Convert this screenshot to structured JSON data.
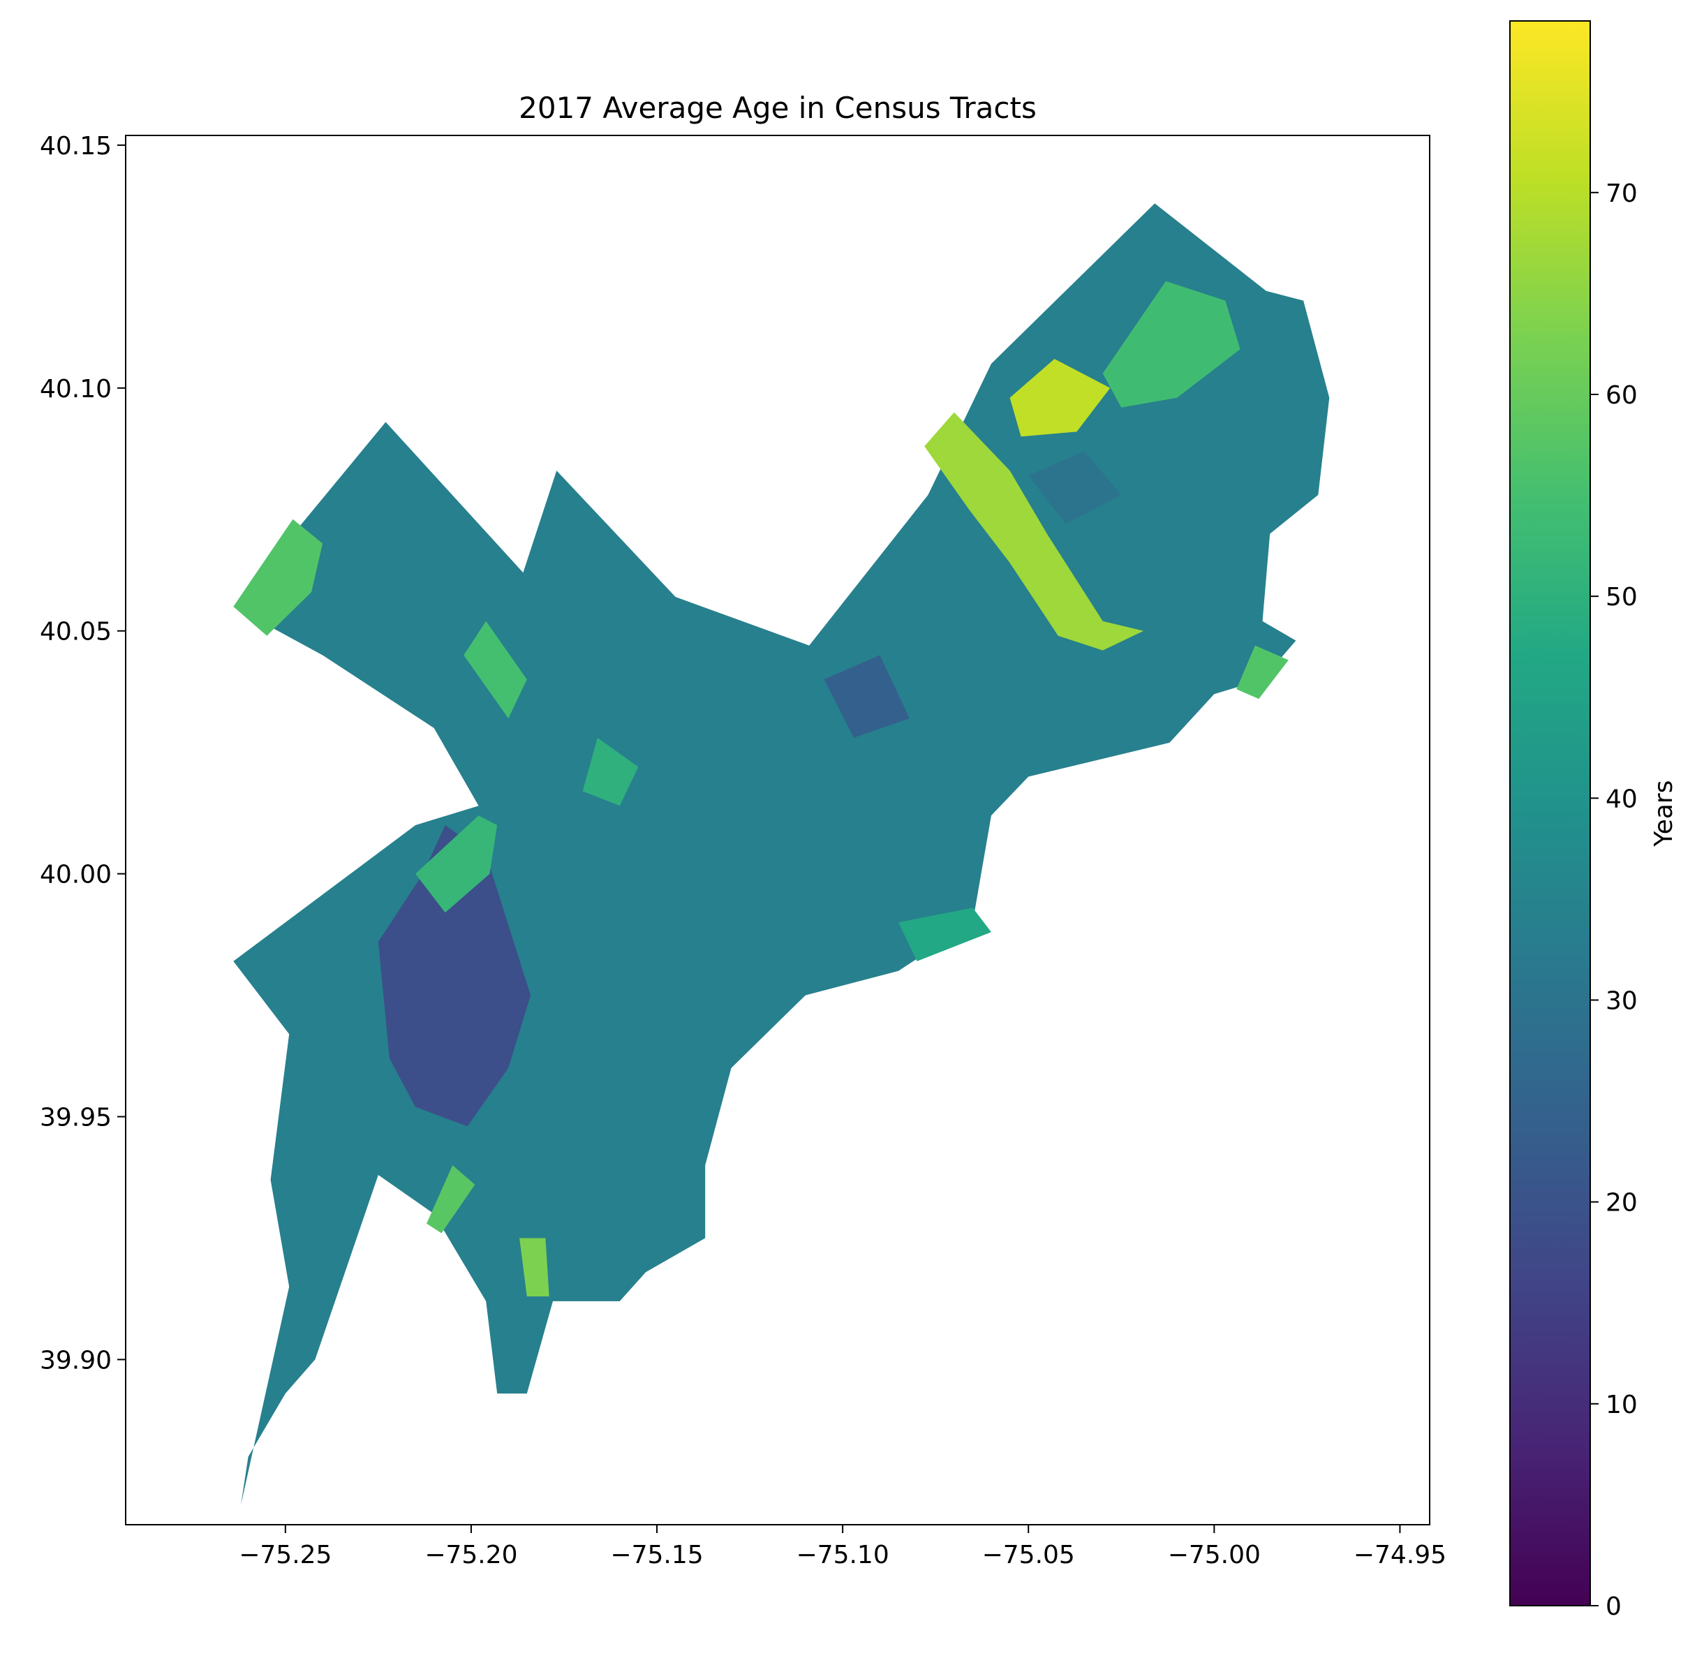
{
  "chart_data": {
    "type": "choropleth",
    "title": "2017 Average Age in Census Tracts",
    "x_ticks": [
      -75.25,
      -75.2,
      -75.15,
      -75.1,
      -75.05,
      -75.0,
      -74.95
    ],
    "x_tick_labels": [
      "−75.25",
      "−75.20",
      "−75.15",
      "−75.10",
      "−75.05",
      "−75.00",
      "−74.95"
    ],
    "y_ticks": [
      39.9,
      39.95,
      40.0,
      40.05,
      40.1,
      40.15
    ],
    "y_tick_labels": [
      "39.90",
      "39.95",
      "40.00",
      "40.05",
      "40.10",
      "40.15"
    ],
    "xlim": [
      -75.293,
      -74.942
    ],
    "ylim": [
      39.866,
      40.152
    ],
    "colormap": "viridis",
    "colorbar": {
      "label": "Years",
      "range": [
        0,
        78.5
      ],
      "ticks": [
        0,
        10,
        20,
        30,
        40,
        50,
        60,
        70
      ],
      "tick_labels": [
        "0",
        "10",
        "20",
        "30",
        "40",
        "50",
        "60",
        "70"
      ]
    },
    "grid": false,
    "regions": [
      {
        "name": "",
        "value": 34,
        "poly": [
          [
            -75.264,
            40.055
          ],
          [
            -75.223,
            40.093
          ],
          [
            -75.186,
            40.062
          ],
          [
            -75.177,
            40.083
          ],
          [
            -75.145,
            40.057
          ],
          [
            -75.109,
            40.047
          ],
          [
            -75.077,
            40.078
          ],
          [
            -75.06,
            40.105
          ],
          [
            -75.016,
            40.138
          ],
          [
            -74.986,
            40.12
          ],
          [
            -74.976,
            40.118
          ],
          [
            -74.969,
            40.098
          ],
          [
            -74.972,
            40.078
          ],
          [
            -74.985,
            40.07
          ],
          [
            -74.987,
            40.052
          ],
          [
            -74.978,
            40.048
          ],
          [
            -74.987,
            40.04
          ],
          [
            -75.0,
            40.037
          ],
          [
            -75.012,
            40.027
          ],
          [
            -75.05,
            40.02
          ],
          [
            -75.06,
            40.012
          ],
          [
            -75.065,
            39.99
          ],
          [
            -75.085,
            39.98
          ],
          [
            -75.11,
            39.975
          ],
          [
            -75.13,
            39.96
          ],
          [
            -75.137,
            39.94
          ],
          [
            -75.137,
            39.925
          ],
          [
            -75.153,
            39.918
          ],
          [
            -75.16,
            39.912
          ],
          [
            -75.178,
            39.912
          ],
          [
            -75.185,
            39.893
          ],
          [
            -75.193,
            39.893
          ],
          [
            -75.196,
            39.912
          ],
          [
            -75.21,
            39.93
          ],
          [
            -75.225,
            39.938
          ],
          [
            -75.242,
            39.9
          ],
          [
            -75.25,
            39.893
          ],
          [
            -75.26,
            39.88
          ],
          [
            -75.262,
            39.87
          ],
          [
            -75.249,
            39.915
          ],
          [
            -75.254,
            39.937
          ],
          [
            -75.249,
            39.967
          ],
          [
            -75.264,
            39.982
          ],
          [
            -75.25,
            39.99
          ],
          [
            -75.215,
            40.01
          ],
          [
            -75.198,
            40.014
          ],
          [
            -75.21,
            40.03
          ],
          [
            -75.24,
            40.045
          ]
        ]
      },
      {
        "name": "",
        "value": 19,
        "poly": [
          [
            -75.207,
            40.01
          ],
          [
            -75.196,
            40.004
          ],
          [
            -75.184,
            39.975
          ],
          [
            -75.19,
            39.96
          ],
          [
            -75.201,
            39.948
          ],
          [
            -75.215,
            39.952
          ],
          [
            -75.222,
            39.962
          ],
          [
            -75.225,
            39.986
          ],
          [
            -75.213,
            40.0
          ]
        ]
      },
      {
        "name": "",
        "value": 57,
        "poly": [
          [
            -75.264,
            40.055
          ],
          [
            -75.248,
            40.073
          ],
          [
            -75.24,
            40.068
          ],
          [
            -75.243,
            40.058
          ],
          [
            -75.255,
            40.049
          ]
        ]
      },
      {
        "name": "",
        "value": 67,
        "poly": [
          [
            -75.078,
            40.088
          ],
          [
            -75.07,
            40.095
          ],
          [
            -75.055,
            40.083
          ],
          [
            -75.045,
            40.07
          ],
          [
            -75.03,
            40.052
          ],
          [
            -75.019,
            40.05
          ],
          [
            -75.03,
            40.046
          ],
          [
            -75.042,
            40.049
          ],
          [
            -75.055,
            40.064
          ],
          [
            -75.066,
            40.075
          ]
        ]
      },
      {
        "name": "",
        "value": 71,
        "poly": [
          [
            -75.055,
            40.098
          ],
          [
            -75.043,
            40.106
          ],
          [
            -75.028,
            40.1
          ],
          [
            -75.037,
            40.091
          ],
          [
            -75.052,
            40.09
          ]
        ]
      },
      {
        "name": "",
        "value": 54,
        "poly": [
          [
            -75.03,
            40.103
          ],
          [
            -75.013,
            40.122
          ],
          [
            -74.997,
            40.118
          ],
          [
            -74.993,
            40.108
          ],
          [
            -75.01,
            40.098
          ],
          [
            -75.025,
            40.096
          ]
        ]
      },
      {
        "name": "",
        "value": 57,
        "poly": [
          [
            -74.989,
            40.047
          ],
          [
            -74.98,
            40.044
          ],
          [
            -74.988,
            40.036
          ],
          [
            -74.994,
            40.038
          ]
        ]
      },
      {
        "name": "",
        "value": 58,
        "poly": [
          [
            -75.199,
            39.936
          ],
          [
            -75.208,
            39.926
          ],
          [
            -75.212,
            39.928
          ],
          [
            -75.205,
            39.94
          ]
        ]
      },
      {
        "name": "",
        "value": 63,
        "poly": [
          [
            -75.185,
            39.913
          ],
          [
            -75.179,
            39.913
          ],
          [
            -75.18,
            39.925
          ],
          [
            -75.187,
            39.925
          ]
        ]
      },
      {
        "name": "",
        "value": 52,
        "poly": [
          [
            -75.215,
            40.0
          ],
          [
            -75.198,
            40.012
          ],
          [
            -75.193,
            40.01
          ],
          [
            -75.195,
            40.0
          ],
          [
            -75.207,
            39.992
          ]
        ]
      },
      {
        "name": "",
        "value": 55,
        "poly": [
          [
            -75.202,
            40.045
          ],
          [
            -75.19,
            40.032
          ],
          [
            -75.185,
            40.04
          ],
          [
            -75.196,
            40.052
          ]
        ]
      },
      {
        "name": "",
        "value": 50,
        "poly": [
          [
            -75.17,
            40.017
          ],
          [
            -75.16,
            40.014
          ],
          [
            -75.155,
            40.022
          ],
          [
            -75.166,
            40.028
          ]
        ]
      },
      {
        "name": "",
        "value": 47,
        "poly": [
          [
            -75.085,
            39.99
          ],
          [
            -75.065,
            39.993
          ],
          [
            -75.06,
            39.988
          ],
          [
            -75.08,
            39.982
          ]
        ]
      },
      {
        "name": "",
        "value": 24,
        "poly": [
          [
            -75.105,
            40.04
          ],
          [
            -75.09,
            40.045
          ],
          [
            -75.082,
            40.032
          ],
          [
            -75.097,
            40.028
          ]
        ]
      },
      {
        "name": "",
        "value": 30,
        "poly": [
          [
            -75.05,
            40.082
          ],
          [
            -75.035,
            40.087
          ],
          [
            -75.025,
            40.078
          ],
          [
            -75.04,
            40.072
          ]
        ]
      }
    ]
  }
}
